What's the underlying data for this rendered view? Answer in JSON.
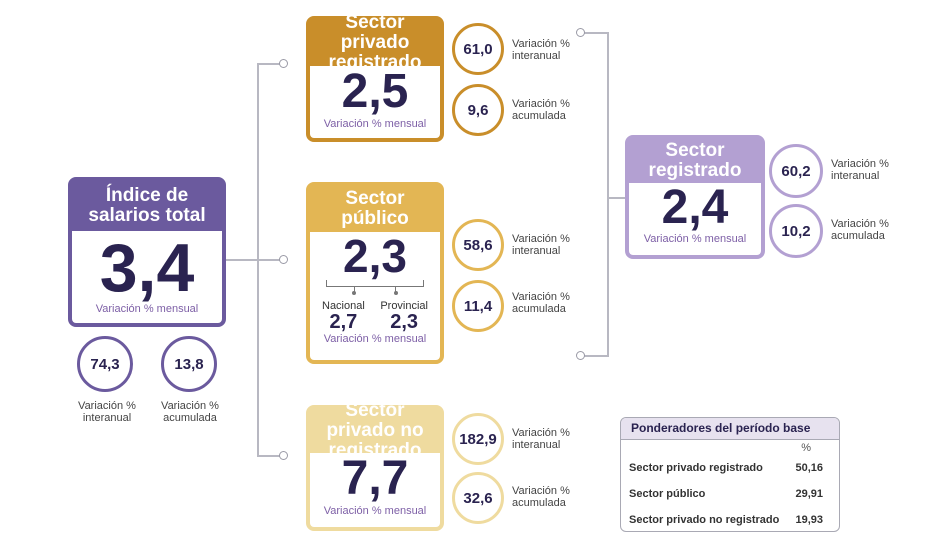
{
  "total": {
    "title": "Índice de salarios total",
    "value": "3,4",
    "caption": "Variación % mensual",
    "interanual_value": "74,3",
    "interanual_label": "Variación % interanual",
    "acumulada_value": "13,8",
    "acumulada_label": "Variación % acumulada"
  },
  "privado_registrado": {
    "title": "Sector privado registrado",
    "value": "2,5",
    "caption": "Variación % mensual",
    "interanual_value": "61,0",
    "interanual_label": "Variación % interanual",
    "acumulada_value": "9,6",
    "acumulada_label": "Variación % acumulada"
  },
  "publico": {
    "title": "Sector público",
    "value": "2,3",
    "nacional_label": "Nacional",
    "nacional_value": "2,7",
    "provincial_label": "Provincial",
    "provincial_value": "2,3",
    "caption": "Variación % mensual",
    "interanual_value": "58,6",
    "interanual_label": "Variación % interanual",
    "acumulada_value": "11,4",
    "acumulada_label": "Variación % acumulada"
  },
  "no_registrado": {
    "title": "Sector privado no registrado",
    "value": "7,7",
    "caption": "Variación % mensual",
    "interanual_value": "182,9",
    "interanual_label": "Variación % interanual",
    "acumulada_value": "32,6",
    "acumulada_label": "Variación % acumulada"
  },
  "registrado": {
    "title": "Sector registrado",
    "value": "2,4",
    "caption": "Variación % mensual",
    "interanual_value": "60,2",
    "interanual_label": "Variación % interanual",
    "acumulada_value": "10,2",
    "acumulada_label": "Variación % acumulada"
  },
  "ponderadores": {
    "title": "Ponderadores del período base",
    "unit": "%",
    "rows": [
      {
        "label": "Sector privado registrado",
        "value": "50,16"
      },
      {
        "label": "Sector público",
        "value": "29,91"
      },
      {
        "label": "Sector privado no registrado",
        "value": "19,93"
      }
    ]
  },
  "colors": {
    "total": "#6b5a9e",
    "privado_registrado": "#c98e2a",
    "publico": "#e3b654",
    "no_registrado": "#efdb9f",
    "registrado": "#b3a0d2"
  }
}
